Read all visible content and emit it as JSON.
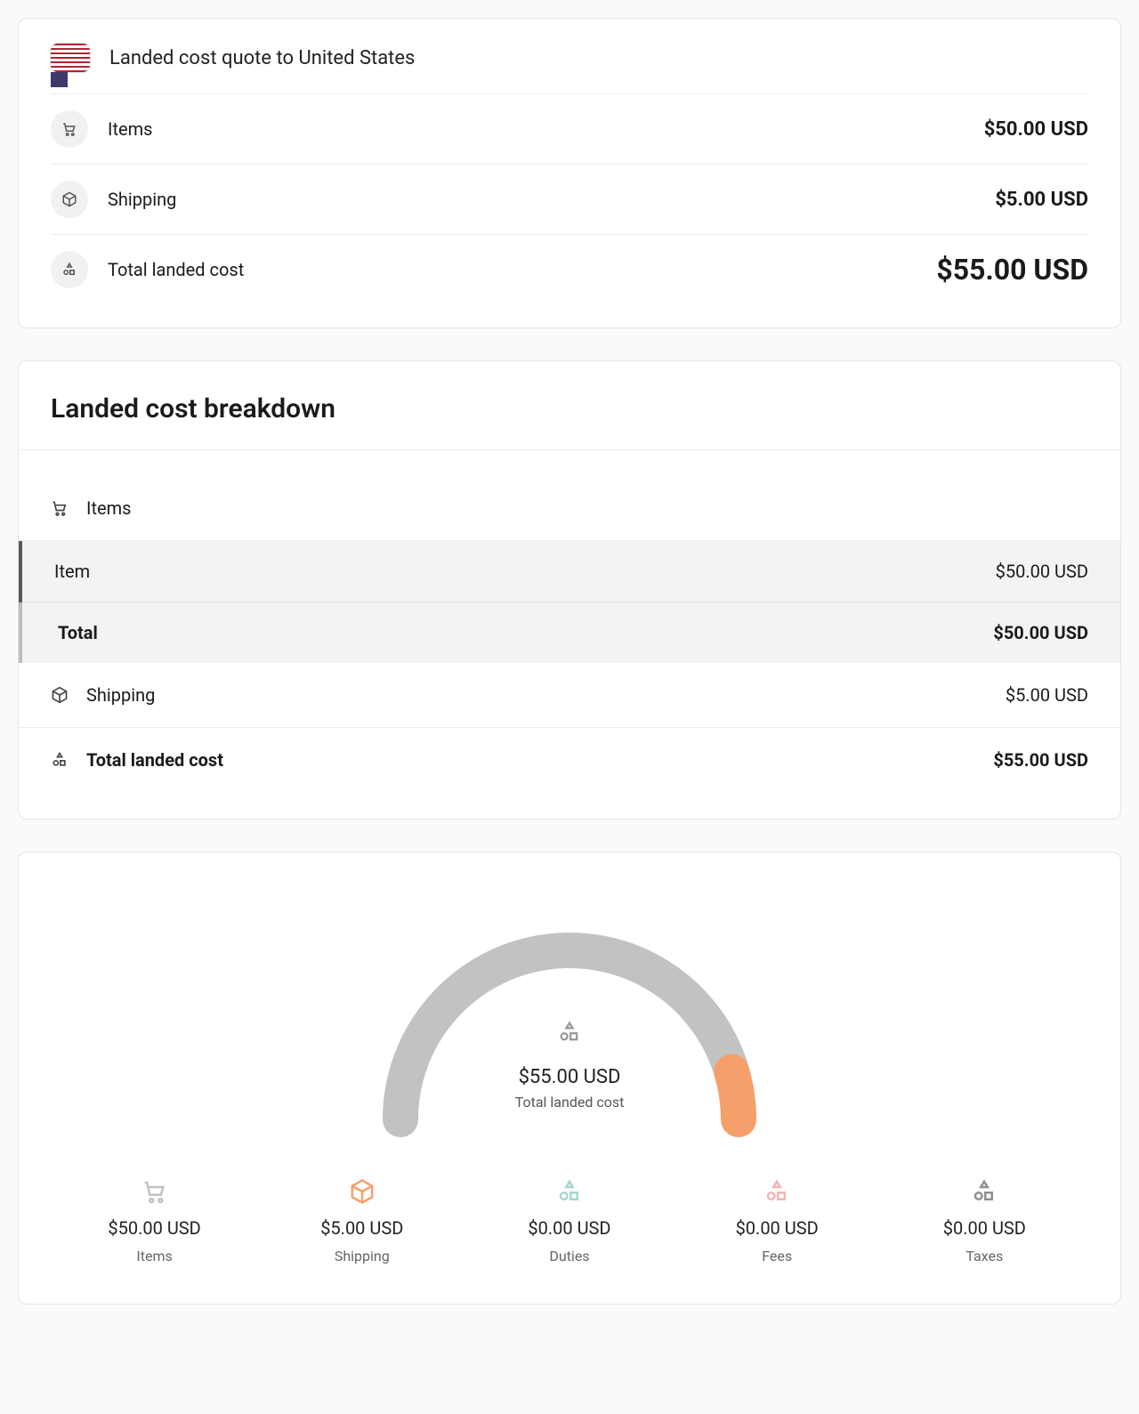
{
  "colors": {
    "card_border": "#e5e5e5",
    "accent_items": "#c2c2c2",
    "accent_shipping": "#f5a06a",
    "accent_duties": "#a7d7d0",
    "accent_fees": "#f3b3b3",
    "accent_taxes": "#8f8f8f",
    "background_gray": "#f3f3f3",
    "bar_dark": "#5a5a5a",
    "flag_red": "#B22234",
    "flag_blue": "#3C3B6E"
  },
  "summary": {
    "title": "Landed cost quote to United States",
    "rows": {
      "items": {
        "label": "Items",
        "value": "$50.00 USD"
      },
      "shipping": {
        "label": "Shipping",
        "value": "$5.00 USD"
      },
      "total": {
        "label": "Total landed cost",
        "value": "$55.00 USD"
      }
    }
  },
  "breakdown": {
    "title": "Landed cost breakdown",
    "items_header": "Items",
    "item_rows": [
      {
        "label": "Item",
        "value": "$50.00 USD",
        "bold": false
      },
      {
        "label": "Total",
        "value": "$50.00 USD",
        "bold": true
      }
    ],
    "shipping": {
      "label": "Shipping",
      "value": "$5.00 USD"
    },
    "total": {
      "label": "Total landed cost",
      "value": "$55.00 USD"
    }
  },
  "gauge": {
    "amount": "$55.00 USD",
    "caption": "Total landed cost",
    "arc_stroke_width": 40,
    "arc_color_base": "#c2c2c2",
    "arc_color_highlight": "#f5a06a",
    "segments": [
      {
        "name": "items",
        "value": 50,
        "color": "#c2c2c2"
      },
      {
        "name": "shipping",
        "value": 5,
        "color": "#f5a06a"
      }
    ],
    "total_value": 55
  },
  "stats": [
    {
      "key": "items",
      "amount": "$50.00 USD",
      "caption": "Items",
      "color": "#c2c2c2"
    },
    {
      "key": "shipping",
      "amount": "$5.00 USD",
      "caption": "Shipping",
      "color": "#f5a06a"
    },
    {
      "key": "duties",
      "amount": "$0.00 USD",
      "caption": "Duties",
      "color": "#a7d7d0"
    },
    {
      "key": "fees",
      "amount": "$0.00 USD",
      "caption": "Fees",
      "color": "#f3b3b3"
    },
    {
      "key": "taxes",
      "amount": "$0.00 USD",
      "caption": "Taxes",
      "color": "#8f8f8f"
    }
  ]
}
